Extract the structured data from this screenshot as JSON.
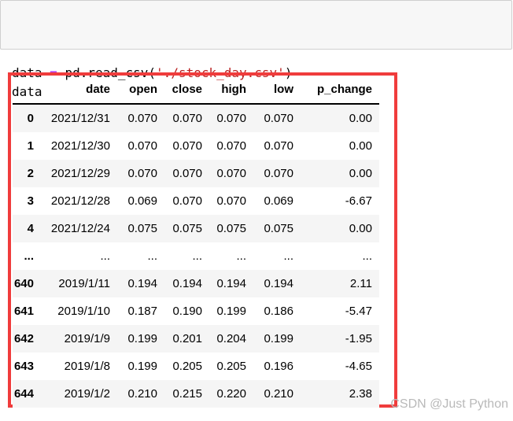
{
  "notebook": {
    "code_cell": {
      "lines": [
        {
          "tokens": [
            {
              "text": "data ",
              "type": "plain"
            },
            {
              "text": "=",
              "type": "operator"
            },
            {
              "text": " pd.read_csv(",
              "type": "plain"
            },
            {
              "text": "'./stock_day.csv'",
              "type": "string"
            },
            {
              "text": ")",
              "type": "plain"
            }
          ]
        },
        {
          "tokens": [
            {
              "text": "data",
              "type": "plain"
            }
          ]
        }
      ]
    },
    "output": {
      "dataframe": {
        "index_header": "",
        "columns": [
          "date",
          "open",
          "close",
          "high",
          "low",
          "p_change"
        ],
        "rows": [
          {
            "index": "0",
            "cells": [
              "2021/12/31",
              "0.070",
              "0.070",
              "0.070",
              "0.070",
              "0.00"
            ]
          },
          {
            "index": "1",
            "cells": [
              "2021/12/30",
              "0.070",
              "0.070",
              "0.070",
              "0.070",
              "0.00"
            ]
          },
          {
            "index": "2",
            "cells": [
              "2021/12/29",
              "0.070",
              "0.070",
              "0.070",
              "0.070",
              "0.00"
            ]
          },
          {
            "index": "3",
            "cells": [
              "2021/12/28",
              "0.069",
              "0.070",
              "0.070",
              "0.069",
              "-6.67"
            ]
          },
          {
            "index": "4",
            "cells": [
              "2021/12/24",
              "0.075",
              "0.075",
              "0.075",
              "0.075",
              "0.00"
            ]
          },
          {
            "index": "...",
            "cells": [
              "...",
              "...",
              "...",
              "...",
              "...",
              "..."
            ]
          },
          {
            "index": "640",
            "cells": [
              "2019/1/11",
              "0.194",
              "0.194",
              "0.194",
              "0.194",
              "2.11"
            ]
          },
          {
            "index": "641",
            "cells": [
              "2019/1/10",
              "0.187",
              "0.190",
              "0.199",
              "0.186",
              "-5.47"
            ]
          },
          {
            "index": "642",
            "cells": [
              "2019/1/9",
              "0.199",
              "0.201",
              "0.204",
              "0.199",
              "-1.95"
            ]
          },
          {
            "index": "643",
            "cells": [
              "2019/1/8",
              "0.199",
              "0.205",
              "0.205",
              "0.196",
              "-4.65"
            ]
          },
          {
            "index": "644",
            "cells": [
              "2019/1/2",
              "0.210",
              "0.215",
              "0.220",
              "0.210",
              "2.38"
            ]
          }
        ]
      }
    },
    "annotation": {
      "highlight_color": "#f03c3c"
    },
    "watermark": "CSDN @Just Python"
  }
}
